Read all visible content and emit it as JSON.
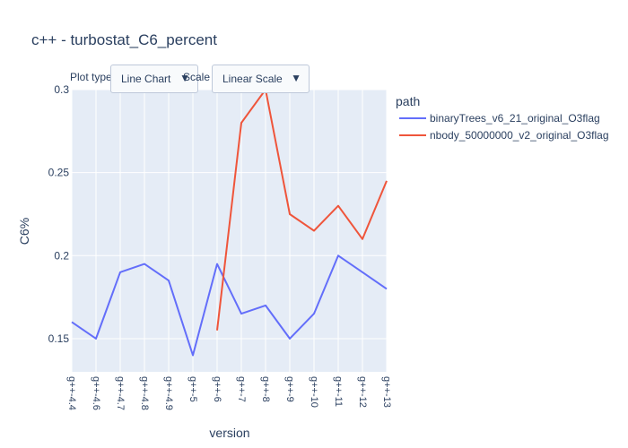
{
  "controls": {
    "plot_type_label": "Plot type",
    "plot_type_value": "Line Chart",
    "scale_label": "Scale",
    "scale_value": "Linear Scale"
  },
  "colors": {
    "plot_bg": "#e5ecf6",
    "grid": "#ffffff",
    "text": "#2a3f5f"
  },
  "chart_data": {
    "type": "line",
    "title": "c++ - turbostat_C6_percent",
    "xlabel": "version",
    "ylabel": "C6%",
    "legend_title": "path",
    "legend_position": "right",
    "grid": true,
    "categories": [
      "g++-4.4",
      "g++-4.6",
      "g++-4.7",
      "g++-4.8",
      "g++-4.9",
      "g++-5",
      "g++-6",
      "g++-7",
      "g++-8",
      "g++-9",
      "g++-10",
      "g++-11",
      "g++-12",
      "g++-13"
    ],
    "ylim": [
      0.13,
      0.3
    ],
    "yticks": [
      0.15,
      0.2,
      0.25,
      0.3
    ],
    "ytick_labels": [
      "0.15",
      "0.2",
      "0.25",
      "0.3"
    ],
    "series": [
      {
        "name": "binaryTrees_v6_21_original_O3flag",
        "color": "#636efa",
        "values": [
          0.16,
          0.15,
          0.19,
          0.195,
          0.185,
          0.14,
          0.195,
          0.165,
          0.17,
          0.15,
          0.165,
          0.2,
          0.19,
          0.18
        ]
      },
      {
        "name": "nbody_50000000_v2_original_O3flag",
        "color": "#ef553b",
        "values": [
          null,
          null,
          null,
          null,
          null,
          null,
          0.155,
          0.28,
          0.3,
          0.225,
          0.215,
          0.23,
          0.21,
          0.245
        ]
      }
    ]
  }
}
